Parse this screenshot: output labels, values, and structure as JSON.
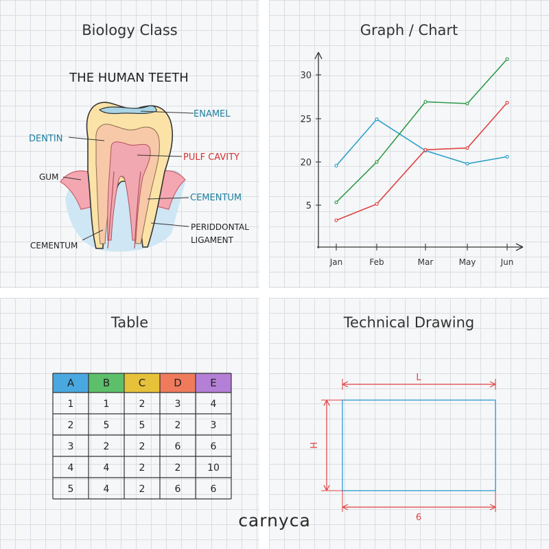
{
  "panels": {
    "biology": {
      "title": "Biology Class",
      "heading": "THE HUMAN TEETH",
      "labels": {
        "enamel": "ENAMEL",
        "dentin": "DENTIN",
        "pulp": "PULF CAVITY",
        "gum": "GUM",
        "cementum_right": "CEMENTUM",
        "periodontal_1": "PERIDDONTAL",
        "periodontal_2": "LIGAMENT",
        "cementum_left": "CEMENTUM"
      }
    },
    "chart": {
      "title": "Graph / Chart"
    },
    "table": {
      "title": "Table"
    },
    "technical": {
      "title": "Technical Drawing",
      "top_label": "L",
      "left_label": "H",
      "bottom_label": "6"
    }
  },
  "chart_data": {
    "type": "line",
    "categories": [
      "Jan",
      "Feb",
      "Mar",
      "May",
      "Jun"
    ],
    "y_ticks": [
      "5",
      "20",
      "25",
      "30"
    ],
    "series": [
      {
        "color": "#2a9fc9",
        "values": [
          18.7,
          24.9,
          21.3,
          19.4,
          20.6
        ]
      },
      {
        "color": "#2f9a4a",
        "values": [
          6,
          20,
          26.9,
          26.7,
          31.8
        ]
      },
      {
        "color": "#e04040",
        "values": [
          3.2,
          5.4,
          21.4,
          21.6,
          26.8
        ]
      }
    ],
    "title": "",
    "xlabel": "",
    "ylabel": ""
  },
  "table": {
    "headers": [
      "A",
      "B",
      "C",
      "D",
      "E"
    ],
    "header_colors": [
      "#4aa8e0",
      "#5dbf6a",
      "#e6c23a",
      "#ef7b5c",
      "#b47fd6"
    ],
    "rows": [
      [
        "1",
        "1",
        "2",
        "3",
        "4"
      ],
      [
        "2",
        "5",
        "5",
        "2",
        "3"
      ],
      [
        "3",
        "2",
        "2",
        "6",
        "6"
      ],
      [
        "4",
        "4",
        "2",
        "2",
        "10"
      ],
      [
        "5",
        "4",
        "2",
        "6",
        "6"
      ]
    ]
  },
  "brand": "carnyca"
}
